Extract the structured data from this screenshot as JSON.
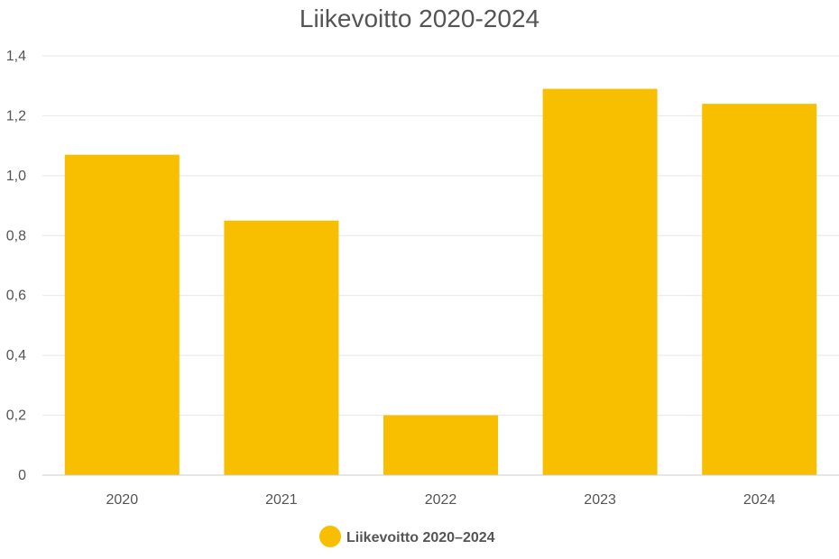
{
  "chart_data": {
    "type": "bar",
    "title": "Liikevoitto 2020-2024",
    "categories": [
      "2020",
      "2021",
      "2022",
      "2023",
      "2024"
    ],
    "series": [
      {
        "name": "Liikevoitto 2020–2024",
        "values": [
          1.07,
          0.85,
          0.2,
          1.29,
          1.24
        ],
        "color": "#f8bf00"
      }
    ],
    "ylim": [
      0,
      1.4
    ],
    "yticks": [
      0,
      0.2,
      0.4,
      0.6,
      0.8,
      1.0,
      1.2,
      1.4
    ],
    "ytick_labels": [
      "0",
      "0,2",
      "0,4",
      "0,6",
      "0,8",
      "1,0",
      "1,2",
      "1,4"
    ],
    "grid": true,
    "legend_position": "bottom-center",
    "colors": {
      "grid": "#e6e6e6",
      "axis": "#cccccc",
      "text": "#555555"
    }
  }
}
